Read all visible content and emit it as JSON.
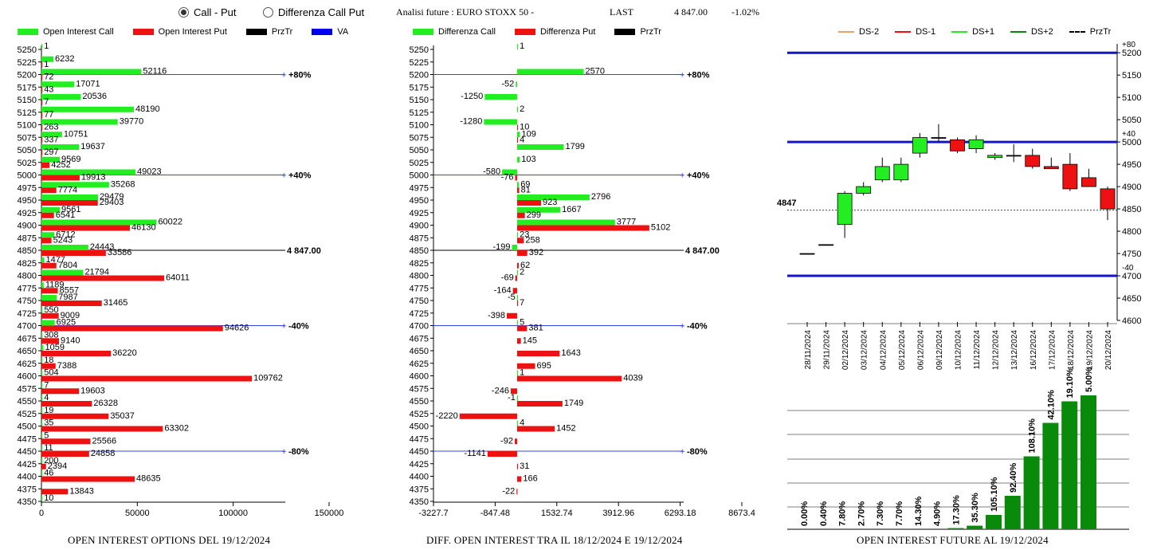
{
  "header": {
    "radio_call_put": "Call - Put",
    "radio_diff": "Differenza Call Put",
    "analysis_title": "Analisi future : EURO STOXX 50 -",
    "last_label": "LAST",
    "last_value": "4 847.00",
    "last_change": "-1.02%"
  },
  "colors": {
    "green": "#22ee22",
    "red": "#ee1111",
    "black": "#000000",
    "blue": "#0000ee",
    "dark_green": "#0a8a0a"
  },
  "legend1": [
    "Open Interest Call",
    "Open Interest Put",
    "PrzTr",
    "VA"
  ],
  "legend2": [
    "Differenza Call",
    "Differenza Put",
    "PrzTr"
  ],
  "legend3": [
    "DS-2",
    "DS-1",
    "DS+1",
    "DS+2",
    "PrzTr"
  ],
  "footer": {
    "left": "OPEN INTEREST OPTIONS DEL 19/12/2024",
    "middle": "DIFF. OPEN INTEREST TRA IL 18/12/2024 E 19/12/2024",
    "right": "OPEN INTEREST FUTURE AL 19/12/2024"
  },
  "chart_data": [
    {
      "type": "bar",
      "orientation": "horizontal",
      "strikes": [
        "5250",
        "5225",
        "5200",
        "5175",
        "5150",
        "5125",
        "5100",
        "5075",
        "5050",
        "5025",
        "5000",
        "4975",
        "4950",
        "4925",
        "4900",
        "4875",
        "4850",
        "4825",
        "4800",
        "4775",
        "4750",
        "4725",
        "4700",
        "4675",
        "4650",
        "4625",
        "4600",
        "4575",
        "4550",
        "4525",
        "4500",
        "4475",
        "4450",
        "4425",
        "4400",
        "4375",
        "4350"
      ],
      "series": [
        {
          "name": "Open Interest Call",
          "values": [
            1,
            6232,
            52116,
            17071,
            20536,
            48190,
            39770,
            10751,
            19637,
            9569,
            49023,
            35268,
            29479,
            9561,
            60022,
            6712,
            24443,
            1477,
            21794,
            1189,
            7987,
            550,
            6925,
            308,
            1059,
            18,
            504,
            7,
            4,
            19,
            35,
            5,
            11,
            200,
            46,
            null,
            10
          ]
        },
        {
          "name": "Open Interest Put",
          "values": [
            null,
            1,
            72,
            43,
            7,
            77,
            263,
            337,
            297,
            4252,
            19913,
            7774,
            29403,
            6541,
            46130,
            5243,
            33586,
            7804,
            64011,
            8557,
            31465,
            9009,
            94626,
            9140,
            36220,
            7388,
            109762,
            19603,
            26328,
            35037,
            63302,
            25566,
            24858,
            2394,
            48635,
            13843,
            null
          ]
        }
      ],
      "x_ticks": [
        "0",
        "50000",
        "100000",
        "150000"
      ],
      "xlim": [
        0,
        160000
      ],
      "annotations": [
        {
          "strike": "5200",
          "label": "+80%"
        },
        {
          "strike": "5000",
          "label": "+40%"
        },
        {
          "strike": "4850",
          "label": "4 847.00"
        },
        {
          "strike": "4700",
          "label": "-40%"
        },
        {
          "strike": "4450",
          "label": "-80%"
        }
      ]
    },
    {
      "type": "bar",
      "orientation": "horizontal",
      "strikes": [
        "5250",
        "5225",
        "5200",
        "5175",
        "5150",
        "5125",
        "5100",
        "5075",
        "5050",
        "5025",
        "5000",
        "4975",
        "4950",
        "4925",
        "4900",
        "4875",
        "4850",
        "4825",
        "4800",
        "4775",
        "4750",
        "4725",
        "4700",
        "4675",
        "4650",
        "4625",
        "4600",
        "4575",
        "4550",
        "4525",
        "4500",
        "4475",
        "4450",
        "4425",
        "4400",
        "4375",
        "4350"
      ],
      "series": [
        {
          "name": "Differenza Call",
          "values": [
            1,
            null,
            2570,
            -52,
            -1250,
            2,
            -1280,
            109,
            1799,
            103,
            -580,
            69,
            2796,
            1667,
            3777,
            23,
            -199,
            null,
            2,
            null,
            -5,
            null,
            5,
            null,
            null,
            null,
            1,
            null,
            -1,
            null,
            4,
            null,
            null,
            null,
            null,
            null,
            null
          ]
        },
        {
          "name": "Differenza Put",
          "values": [
            null,
            null,
            null,
            null,
            null,
            null,
            10,
            4,
            null,
            null,
            -76,
            81,
            923,
            299,
            5102,
            258,
            392,
            62,
            -69,
            -164,
            7,
            -398,
            381,
            145,
            1643,
            695,
            4039,
            -246,
            1749,
            -2220,
            1452,
            -92,
            -1141,
            31,
            166,
            -22,
            null
          ]
        }
      ],
      "x_ticks": [
        "-3227.7",
        "-847.48",
        "1532.74",
        "3912.96",
        "6293.18",
        "8673.4"
      ],
      "xlim": [
        -3227.7,
        8673.4
      ],
      "annotations": [
        {
          "strike": "5200",
          "label": "+80%"
        },
        {
          "strike": "4850",
          "label": "4 847.00"
        },
        {
          "strike": "4700",
          "label": "-40%"
        },
        {
          "strike": "4450",
          "label": "-80%"
        }
      ],
      "annotations_extra": [
        {
          "strike": "5000",
          "label": "+40%"
        }
      ]
    },
    {
      "type": "candlestick",
      "dates": [
        "28/11/2024",
        "29/11/2024",
        "02/12/2024",
        "03/12/2024",
        "04/12/2024",
        "05/12/2024",
        "06/12/2024",
        "09/12/2024",
        "10/12/2024",
        "11/12/2024",
        "12/12/2024",
        "13/12/2024",
        "16/12/2024",
        "17/12/2024",
        "18/12/2024",
        "19/12/2024",
        "20/12/2024"
      ],
      "ohlc": [
        [
          4750,
          4750,
          4750,
          4750
        ],
        [
          4770,
          4770,
          4770,
          4770
        ],
        [
          4815,
          4890,
          4785,
          4885
        ],
        [
          4885,
          4910,
          4880,
          4900
        ],
        [
          4915,
          4965,
          4910,
          4945
        ],
        [
          4915,
          4965,
          4910,
          4950
        ],
        [
          4975,
          5020,
          4965,
          5010
        ],
        [
          5010,
          5040,
          5000,
          5010
        ],
        [
          5005,
          5010,
          4975,
          4980
        ],
        [
          4985,
          5015,
          4975,
          5005
        ],
        [
          4965,
          4975,
          4960,
          4970
        ],
        [
          4970,
          4995,
          4955,
          4970
        ],
        [
          4970,
          4985,
          4940,
          4945
        ],
        [
          4945,
          4965,
          4940,
          4940
        ],
        [
          4950,
          4975,
          4890,
          4895
        ],
        [
          4920,
          4940,
          4900,
          4900
        ],
        [
          4895,
          4900,
          4825,
          4850
        ]
      ],
      "y_ticks": [
        "4600",
        "4650",
        "4700",
        "4750",
        "4800",
        "4850",
        "4900",
        "4950",
        "5000",
        "5050",
        "5100",
        "5150",
        "5200"
      ],
      "ylim": [
        4600,
        5220
      ],
      "hlines": [
        {
          "value": 5200,
          "label": "+80"
        },
        {
          "value": 5000,
          "label": "+40"
        },
        {
          "value": 4700,
          "label": "-40"
        }
      ],
      "last_value_label": "4847",
      "last_value": 4847
    },
    {
      "type": "bar",
      "categories": [
        "28/11/2024",
        "29/11/2024",
        "02/12/2024",
        "03/12/2024",
        "04/12/2024",
        "05/12/2024",
        "06/12/2024",
        "09/12/2024",
        "10/12/2024",
        "11/12/2024",
        "12/12/2024",
        "13/12/2024",
        "16/12/2024",
        "17/12/2024",
        "18/12/2024",
        "19/12/2024"
      ],
      "values": [
        0.0,
        0.4,
        7.8,
        2.7,
        7.3,
        7.7,
        14.3,
        4.9,
        17.3,
        35.3,
        105.1,
        92.4,
        108.1,
        42.1,
        19.1,
        5.0
      ],
      "labels": [
        "0.00%",
        "0.40%",
        "7.80%",
        "2.70%",
        "7.30%",
        "7.70%",
        "14.30%",
        "4.90%",
        "17.30%",
        "35.30%",
        "105.10%",
        "92.40%",
        "108.10%",
        "42.10%",
        "19.10%",
        "5.00%"
      ],
      "relative_heights": [
        0,
        0,
        0,
        0,
        0,
        0,
        0,
        0,
        0.01,
        0.03,
        0.12,
        0.28,
        0.61,
        0.89,
        1.07,
        1.12
      ]
    }
  ]
}
